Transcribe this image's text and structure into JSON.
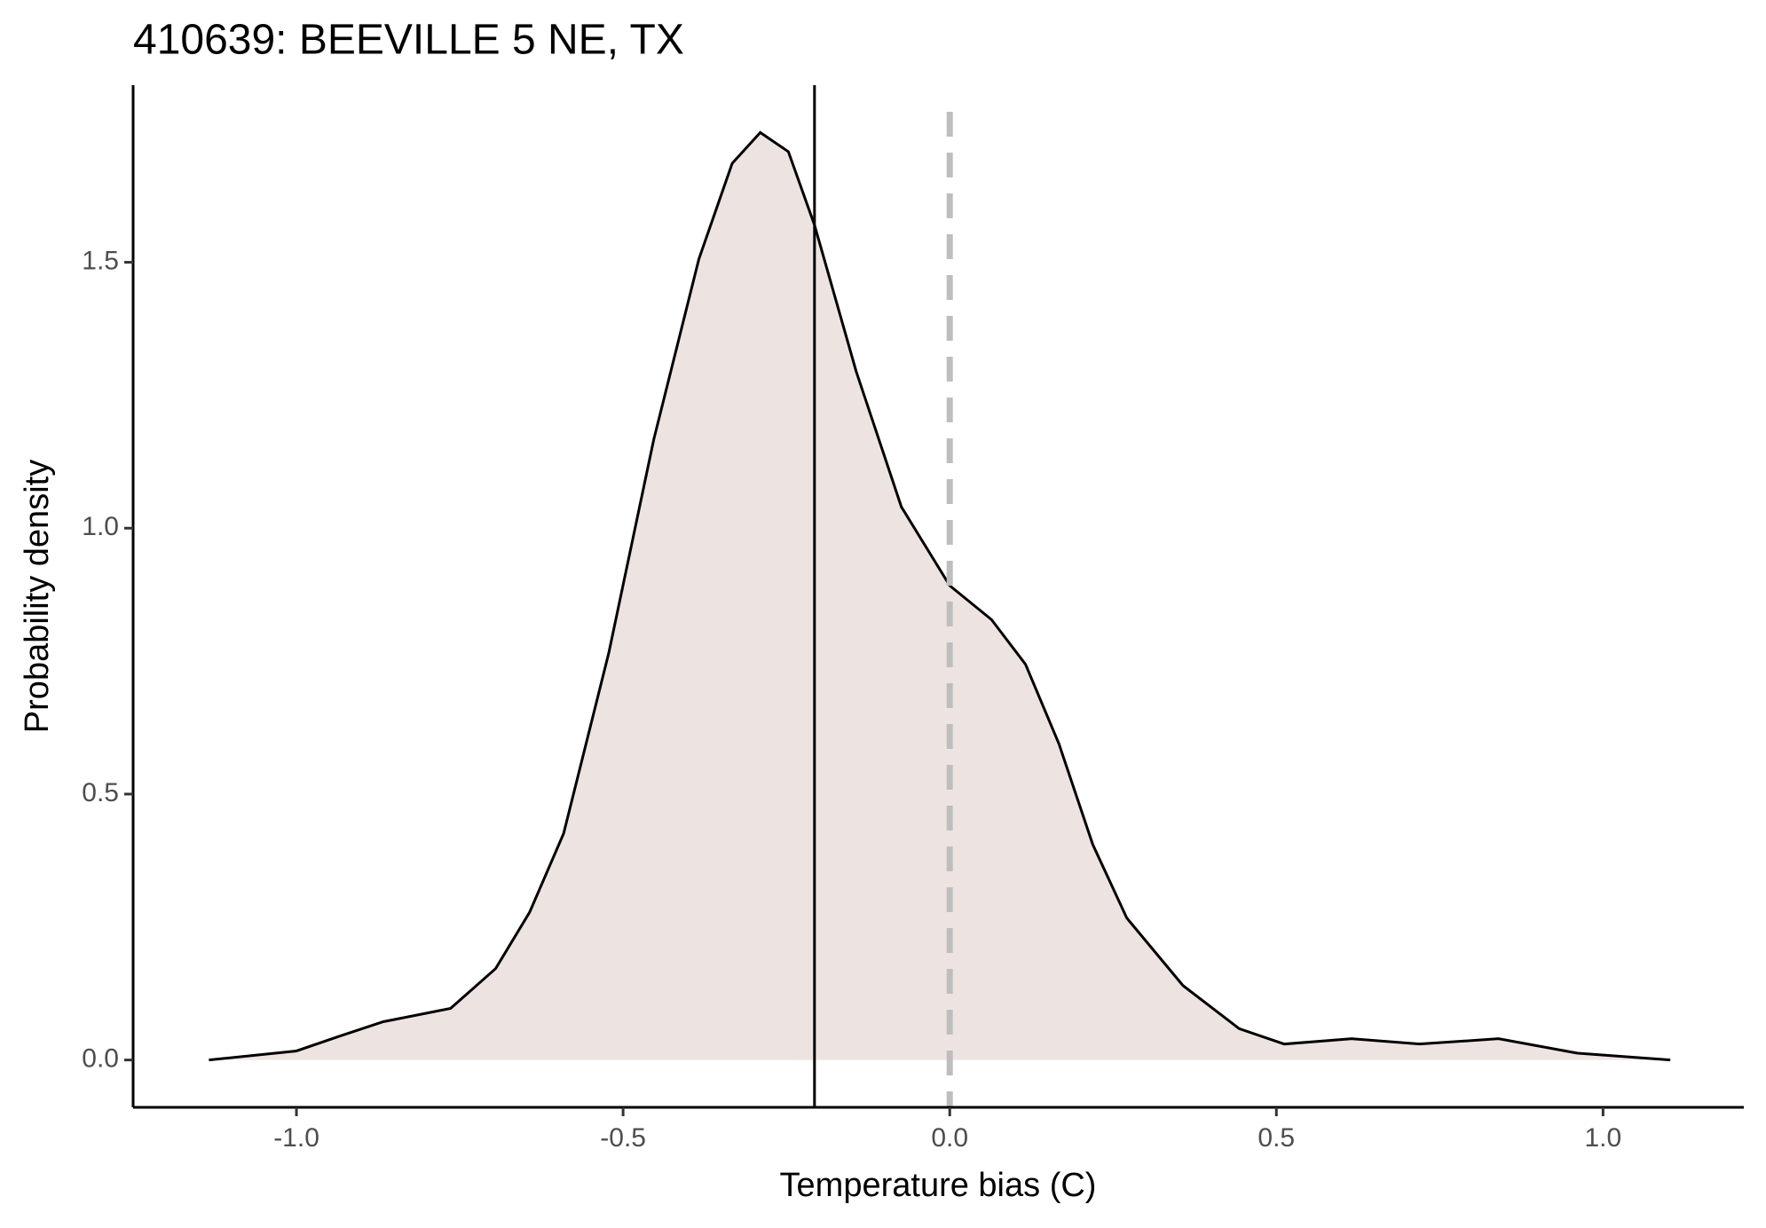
{
  "chart_data": {
    "type": "density",
    "title": "410639: BEEVILLE 5 NE, TX",
    "x_label": "Temperature bias (C)",
    "y_label": "Probability density",
    "x": [
      -1.134,
      -1.0,
      -0.936,
      -0.867,
      -0.764,
      -0.695,
      -0.643,
      -0.591,
      -0.522,
      -0.453,
      -0.384,
      -0.333,
      -0.29,
      -0.247,
      -0.207,
      -0.143,
      -0.074,
      0.0,
      0.064,
      0.116,
      0.167,
      0.219,
      0.271,
      0.357,
      0.443,
      0.512,
      0.616,
      0.719,
      0.84,
      0.96,
      1.103
    ],
    "values": [
      0.0,
      0.017,
      0.044,
      0.072,
      0.097,
      0.172,
      0.278,
      0.426,
      0.765,
      1.167,
      1.506,
      1.686,
      1.744,
      1.708,
      1.57,
      1.294,
      1.04,
      0.892,
      0.828,
      0.744,
      0.595,
      0.405,
      0.267,
      0.14,
      0.059,
      0.03,
      0.04,
      0.03,
      0.04,
      0.013,
      0.0
    ],
    "color": "#000000",
    "fill": "#ede4e2",
    "mean_line": -0.207,
    "mean_line_color": "#000000",
    "reference_line": 0,
    "reference_line_color": "#bebebe",
    "xlim": [
      -1.25,
      1.2155
    ],
    "ylim": [
      -0.089,
      1.833
    ],
    "xticks": [
      {
        "value": -1,
        "label": "-1.0"
      },
      {
        "value": -0.5,
        "label": "-0.5"
      },
      {
        "value": 0,
        "label": "0.0"
      },
      0.5,
      {
        "value": 1,
        "label": "1.0"
      }
    ],
    "yticks": [
      {
        "value": 0,
        "label": "0.0"
      },
      0.5,
      {
        "value": 1,
        "label": "1.0"
      },
      1.5
    ],
    "grid": false
  }
}
